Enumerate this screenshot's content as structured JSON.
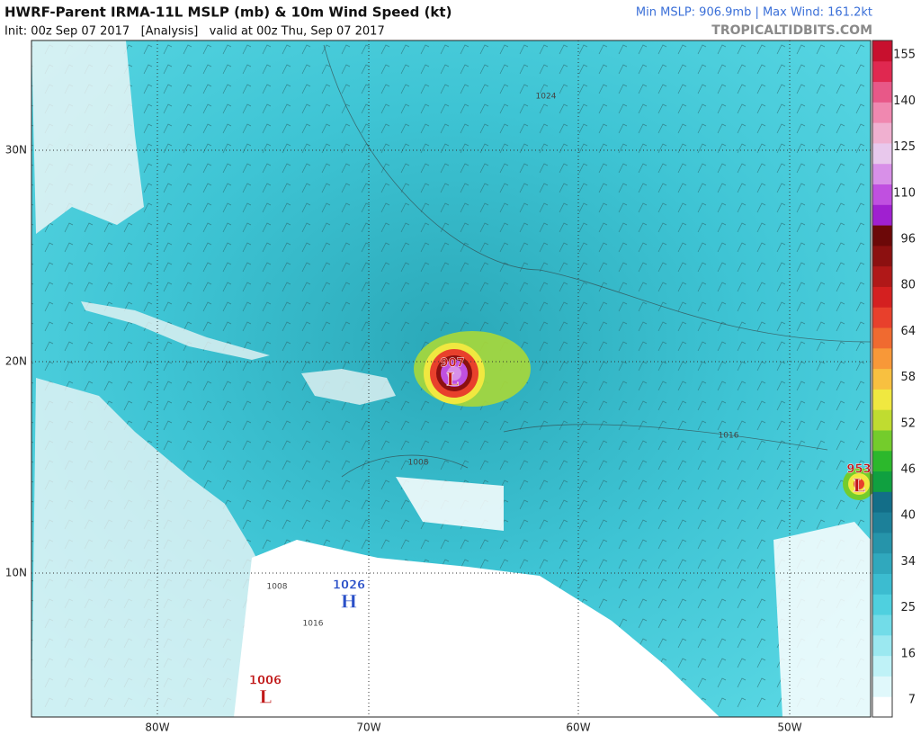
{
  "header": {
    "title": "HWRF-Parent IRMA-11L MSLP (mb) & 10m Wind Speed (kt)",
    "subtitle": "Init: 00z Sep 07 2017   [Analysis]   valid at 00z Thu, Sep 07 2017",
    "stats": "Min MSLP: 906.9mb | Max Wind: 161.2kt",
    "site": "TROPICALTIDBITS.COM"
  },
  "map": {
    "lat_labels": [
      "30N",
      "20N",
      "10N"
    ],
    "lon_labels": [
      "80W",
      "70W",
      "60W",
      "50W"
    ],
    "systems": [
      {
        "pressure": "907",
        "symbol": "L",
        "color": "#c01818"
      },
      {
        "pressure": "953",
        "symbol": "L",
        "color": "#c01818"
      },
      {
        "pressure": "1026",
        "symbol": "H",
        "color": "#2a50c8"
      },
      {
        "pressure": "1006",
        "symbol": "L",
        "color": "#c01818"
      }
    ],
    "contour_labels": [
      "1024",
      "1016",
      "1008",
      "1008",
      "1016"
    ]
  },
  "colorbar": {
    "ticks": [
      7,
      16,
      25,
      34,
      40,
      46,
      52,
      58,
      64,
      80,
      96,
      110,
      125,
      140,
      155
    ],
    "colors": [
      "#ffffff",
      "#e0f8fb",
      "#bff2f7",
      "#9be8f0",
      "#72dce8",
      "#4fd0df",
      "#3cbcd0",
      "#30a8bd",
      "#2694aa",
      "#1c8099",
      "#136e88",
      "#10a040",
      "#2cb82c",
      "#74cc2c",
      "#c0dc30",
      "#f0e840",
      "#f8c040",
      "#f89838",
      "#f06a30",
      "#e8402c",
      "#d42020",
      "#b01818",
      "#8c1010",
      "#6c0808",
      "#a020d0",
      "#c050e0",
      "#d890e8",
      "#e8c8ec",
      "#f0b0d0",
      "#f088b0",
      "#e85888",
      "#e02850",
      "#c8102e"
    ]
  }
}
